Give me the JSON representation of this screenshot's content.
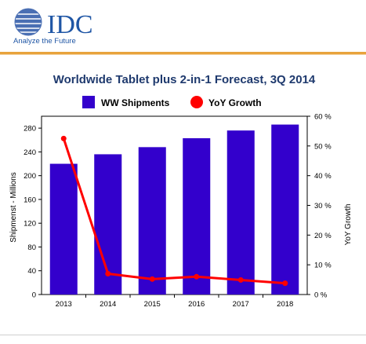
{
  "brand": {
    "name": "IDC",
    "tagline": "Analyze the Future",
    "globe_color": "#4a6fb3",
    "text_color": "#1f56a5",
    "accent_rule_color": "#e8a33c"
  },
  "chart_data": {
    "type": "bar+line",
    "title": "Worldwide Tablet plus 2-in-1 Forecast, 3Q 2014",
    "categories": [
      "2013",
      "2014",
      "2015",
      "2016",
      "2017",
      "2018"
    ],
    "series": [
      {
        "name": "WW Shipments",
        "kind": "bar",
        "axis": "left",
        "color": "#3300cc",
        "values": [
          220,
          236,
          248,
          263,
          276,
          286
        ]
      },
      {
        "name": "YoY Growth",
        "kind": "line",
        "axis": "right",
        "color": "#ff0000",
        "values": [
          52.5,
          7.0,
          5.2,
          6.0,
          4.9,
          3.8
        ]
      }
    ],
    "ylabel_left": "Shipmenst - Millions",
    "ylabel_right": "YoY Growth",
    "left_axis": {
      "min": 0,
      "max": 300,
      "ticks": [
        "0",
        "40",
        "80",
        "120",
        "160",
        "200",
        "240",
        "280"
      ]
    },
    "right_axis": {
      "min": 0,
      "max": 60,
      "ticks": [
        "0 %",
        "10 %",
        "20 %",
        "30 %",
        "40 %",
        "50 %",
        "60 %"
      ]
    },
    "legend_position": "top",
    "grid": false
  }
}
